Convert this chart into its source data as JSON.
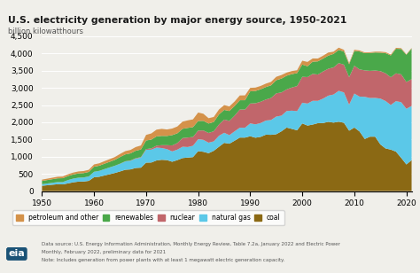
{
  "title": "U.S. electricity generation by major energy source, 1950-2021",
  "ylabel": "billion kilowatthours",
  "years": [
    1950,
    1951,
    1952,
    1953,
    1954,
    1955,
    1956,
    1957,
    1958,
    1959,
    1960,
    1961,
    1962,
    1963,
    1964,
    1965,
    1966,
    1967,
    1968,
    1969,
    1970,
    1971,
    1972,
    1973,
    1974,
    1975,
    1976,
    1977,
    1978,
    1979,
    1980,
    1981,
    1982,
    1983,
    1984,
    1985,
    1986,
    1987,
    1988,
    1989,
    1990,
    1991,
    1992,
    1993,
    1994,
    1995,
    1996,
    1997,
    1998,
    1999,
    2000,
    2001,
    2002,
    2003,
    2004,
    2005,
    2006,
    2007,
    2008,
    2009,
    2010,
    2011,
    2012,
    2013,
    2014,
    2015,
    2016,
    2017,
    2018,
    2019,
    2020,
    2021
  ],
  "coal": [
    155,
    170,
    185,
    200,
    195,
    224,
    256,
    275,
    279,
    298,
    403,
    417,
    454,
    490,
    527,
    571,
    620,
    630,
    672,
    681,
    827,
    830,
    890,
    910,
    901,
    853,
    900,
    960,
    975,
    988,
    1161,
    1142,
    1101,
    1171,
    1289,
    1402,
    1377,
    1464,
    1555,
    1554,
    1594,
    1551,
    1576,
    1639,
    1635,
    1652,
    1737,
    1846,
    1807,
    1767,
    1966,
    1904,
    1933,
    1974,
    1978,
    2013,
    1990,
    2016,
    1985,
    1755,
    1847,
    1733,
    1514,
    1581,
    1581,
    1356,
    1239,
    1206,
    1146,
    966,
    774,
    899
  ],
  "natural_gas": [
    44,
    50,
    56,
    62,
    67,
    96,
    106,
    113,
    117,
    128,
    158,
    170,
    185,
    198,
    210,
    222,
    241,
    252,
    272,
    293,
    373,
    374,
    376,
    341,
    319,
    300,
    305,
    329,
    305,
    329,
    346,
    346,
    306,
    274,
    319,
    292,
    249,
    273,
    287,
    287,
    373,
    388,
    401,
    411,
    431,
    514,
    455,
    480,
    530,
    556,
    601,
    639,
    691,
    649,
    710,
    760,
    816,
    896,
    883,
    755,
    987,
    1013,
    1225,
    1124,
    1126,
    1332,
    1378,
    1296,
    1468,
    1617,
    1617,
    1575
  ],
  "nuclear": [
    1,
    1,
    1,
    1,
    1,
    1,
    1,
    1,
    1,
    1,
    1,
    1,
    1,
    1,
    1,
    4,
    6,
    8,
    12,
    14,
    22,
    38,
    54,
    83,
    114,
    173,
    191,
    251,
    276,
    255,
    251,
    273,
    282,
    294,
    328,
    384,
    414,
    455,
    527,
    529,
    577,
    613,
    619,
    610,
    640,
    673,
    675,
    628,
    673,
    728,
    754,
    769,
    780,
    764,
    788,
    782,
    787,
    806,
    806,
    799,
    807,
    790,
    769,
    789,
    797,
    798,
    805,
    805,
    807,
    809,
    778,
    778
  ],
  "renewables": [
    96,
    100,
    104,
    108,
    112,
    116,
    120,
    124,
    126,
    130,
    146,
    150,
    156,
    162,
    170,
    194,
    199,
    206,
    216,
    220,
    248,
    254,
    269,
    270,
    268,
    300,
    283,
    270,
    280,
    287,
    279,
    280,
    274,
    270,
    290,
    281,
    287,
    281,
    271,
    270,
    356,
    356,
    362,
    363,
    367,
    382,
    402,
    398,
    388,
    376,
    356,
    315,
    355,
    382,
    374,
    381,
    392,
    383,
    381,
    375,
    430,
    520,
    499,
    517,
    522,
    534,
    586,
    634,
    713,
    736,
    792,
    888
  ],
  "petroleum": [
    37,
    40,
    43,
    46,
    49,
    52,
    55,
    58,
    60,
    62,
    67,
    70,
    74,
    78,
    82,
    89,
    95,
    100,
    108,
    117,
    163,
    179,
    196,
    204,
    188,
    191,
    198,
    208,
    219,
    225,
    246,
    206,
    155,
    145,
    145,
    139,
    134,
    130,
    139,
    141,
    99,
    99,
    97,
    99,
    100,
    100,
    103,
    91,
    90,
    84,
    111,
    125,
    94,
    83,
    84,
    90,
    65,
    66,
    50,
    36,
    37,
    30,
    22,
    23,
    25,
    31,
    28,
    28,
    28,
    24,
    17,
    17
  ],
  "colors": {
    "coal": "#8B6914",
    "natural_gas": "#5BC8E8",
    "nuclear": "#C1666B",
    "renewables": "#4AA84A",
    "petroleum": "#D4924A"
  },
  "background_color": "#F0EFEA",
  "plot_bg": "#F0EFEA",
  "xlim": [
    1950,
    2021
  ],
  "ylim": [
    0,
    4600
  ],
  "yticks": [
    0,
    500,
    1000,
    1500,
    2000,
    2500,
    3000,
    3500,
    4000,
    4500
  ],
  "xticks": [
    1950,
    1960,
    1970,
    1980,
    1990,
    2000,
    2010,
    2020
  ],
  "legend_labels": [
    "petroleum and other",
    "renewables",
    "nuclear",
    "natural gas",
    "coal"
  ],
  "legend_colors": [
    "#D4924A",
    "#4AA84A",
    "#C1666B",
    "#5BC8E8",
    "#8B6914"
  ],
  "note1": "Data source: U.S. Energy Information Administration, Monthly Energy Review, Table 7.2a, January 2022 and Electric Power",
  "note2": "Monthly, February 2022, preliminary data for 2021",
  "note3": "Note: Includes generation from power plants with at least 1 megawatt electric generation capacity."
}
